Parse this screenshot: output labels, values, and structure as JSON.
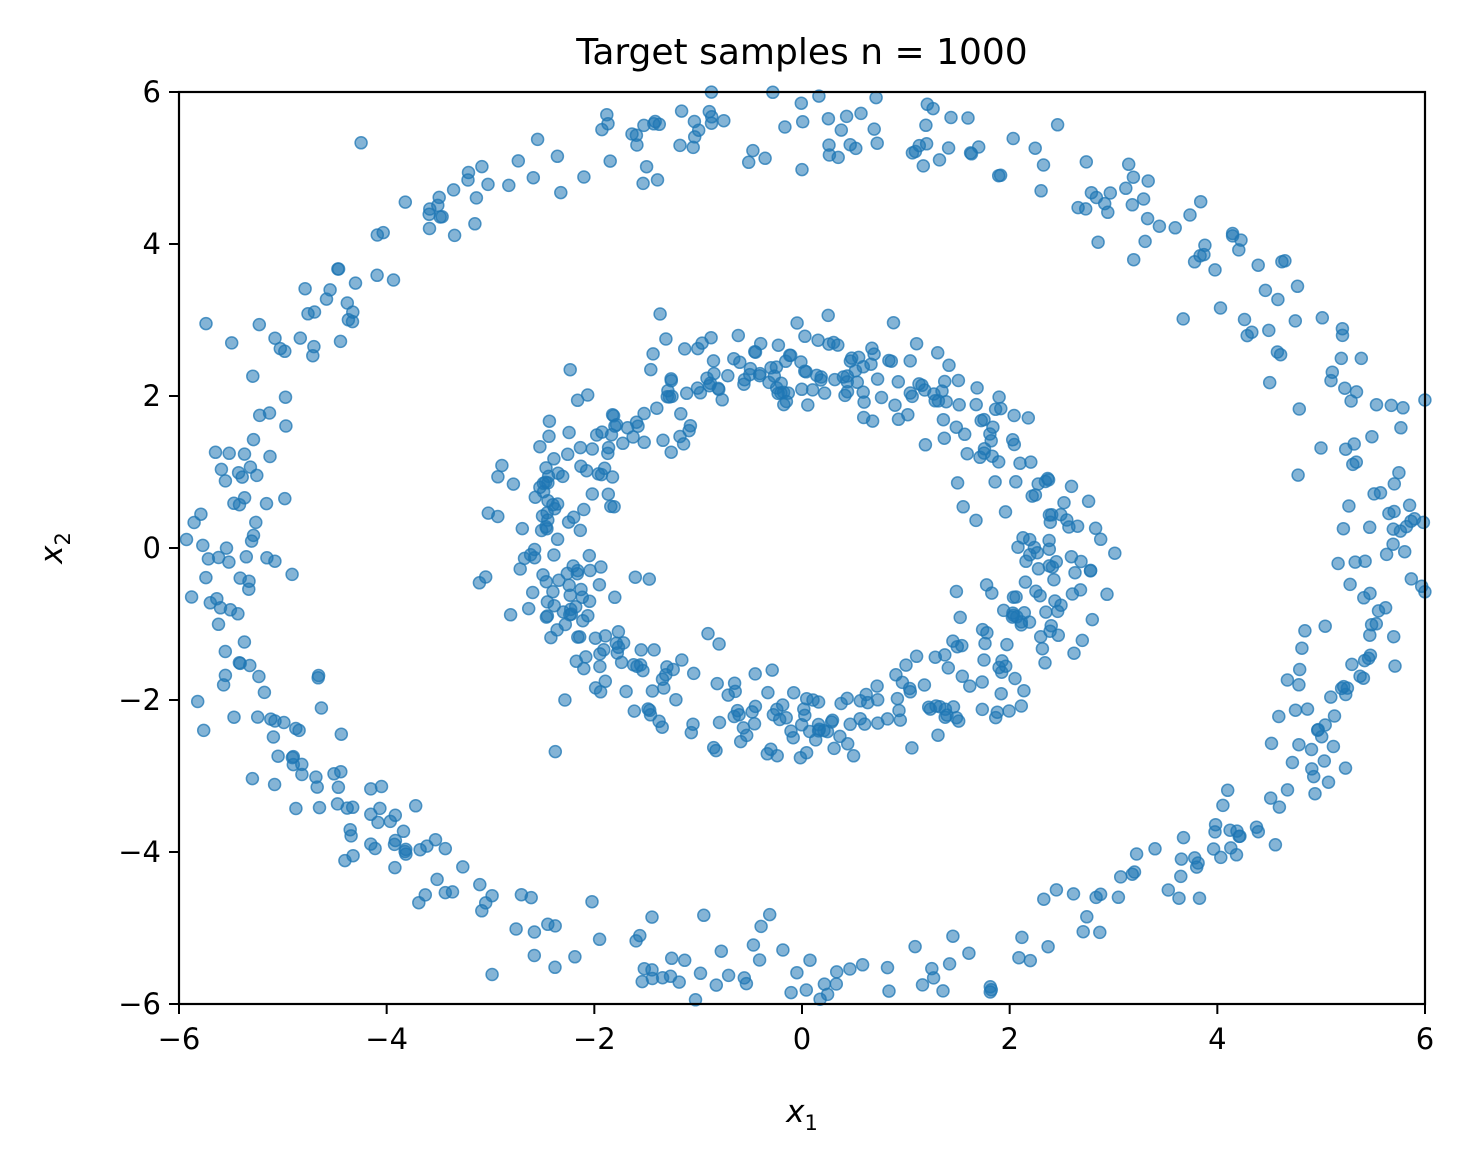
{
  "chart_data": {
    "type": "scatter",
    "title": "Target samples n = 1000",
    "xlabel": {
      "symbol": "x",
      "subscript": "1"
    },
    "ylabel": {
      "symbol": "x",
      "subscript": "2"
    },
    "xlim": [
      -6,
      6
    ],
    "ylim": [
      -6,
      6
    ],
    "xticks": [
      -6,
      -4,
      -2,
      0,
      2,
      4,
      6
    ],
    "yticks": [
      -6,
      -4,
      -2,
      0,
      2,
      4,
      6
    ],
    "xtick_labels": [
      "−6",
      "−4",
      "−2",
      "0",
      "2",
      "4",
      "6"
    ],
    "ytick_labels": [
      "−6",
      "−4",
      "−2",
      "0",
      "2",
      "4",
      "6"
    ],
    "grid": false,
    "marker_color": "#1f77b4",
    "marker_alpha": 0.55,
    "n_samples": 1000,
    "series": [
      {
        "label": "inner ring",
        "center": [
          0,
          0
        ],
        "radius_x": 2.4,
        "radius_y": 2.35,
        "count": 500,
        "noise": 0.3
      },
      {
        "label": "outer ring",
        "center": [
          0,
          0
        ],
        "radius_x": 5.6,
        "radius_y": 5.6,
        "count": 500,
        "noise": 0.3
      }
    ]
  }
}
